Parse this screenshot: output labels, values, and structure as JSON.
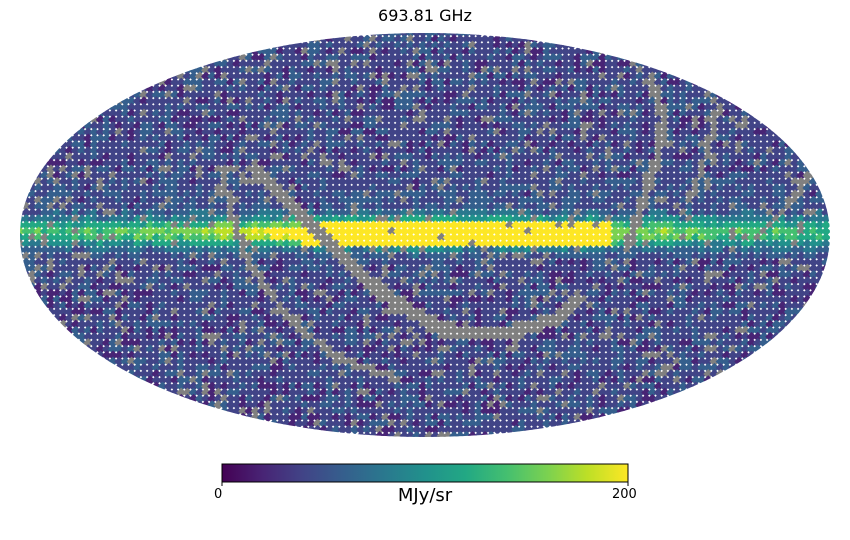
{
  "title": "693.81 GHz",
  "colorbar": {
    "min_label": "0",
    "max_label": "200",
    "unit": "MJy/sr",
    "colormap": "viridis",
    "range": [
      0,
      200
    ]
  },
  "colors": {
    "masked_pixel": "#808080",
    "background": "#ffffff"
  },
  "projection": "mollweide"
}
